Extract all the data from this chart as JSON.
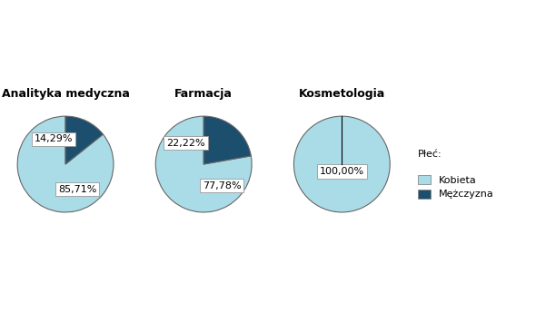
{
  "charts": [
    {
      "title": "Analityka medyczna",
      "values": [
        85.71,
        14.29
      ],
      "labels": [
        "85,71%",
        "14,29%"
      ],
      "colors": [
        "#aadce8",
        "#1c4e6e"
      ]
    },
    {
      "title": "Farmacja",
      "values": [
        77.78,
        22.22
      ],
      "labels": [
        "77,78%",
        "22,22%"
      ],
      "colors": [
        "#aadce8",
        "#1c4e6e"
      ]
    },
    {
      "title": "Kosmetologia",
      "values": [
        100.0,
        0.0
      ],
      "labels": [
        "100,00%",
        ""
      ],
      "colors": [
        "#aadce8",
        "#1c4e6e"
      ]
    }
  ],
  "legend_title": "Płeć:",
  "legend_labels": [
    "Kobieta",
    "Mężczyzna"
  ],
  "legend_colors": [
    "#aadce8",
    "#1c4e6e"
  ],
  "bg_color": "#ffffff",
  "startangle": 90
}
